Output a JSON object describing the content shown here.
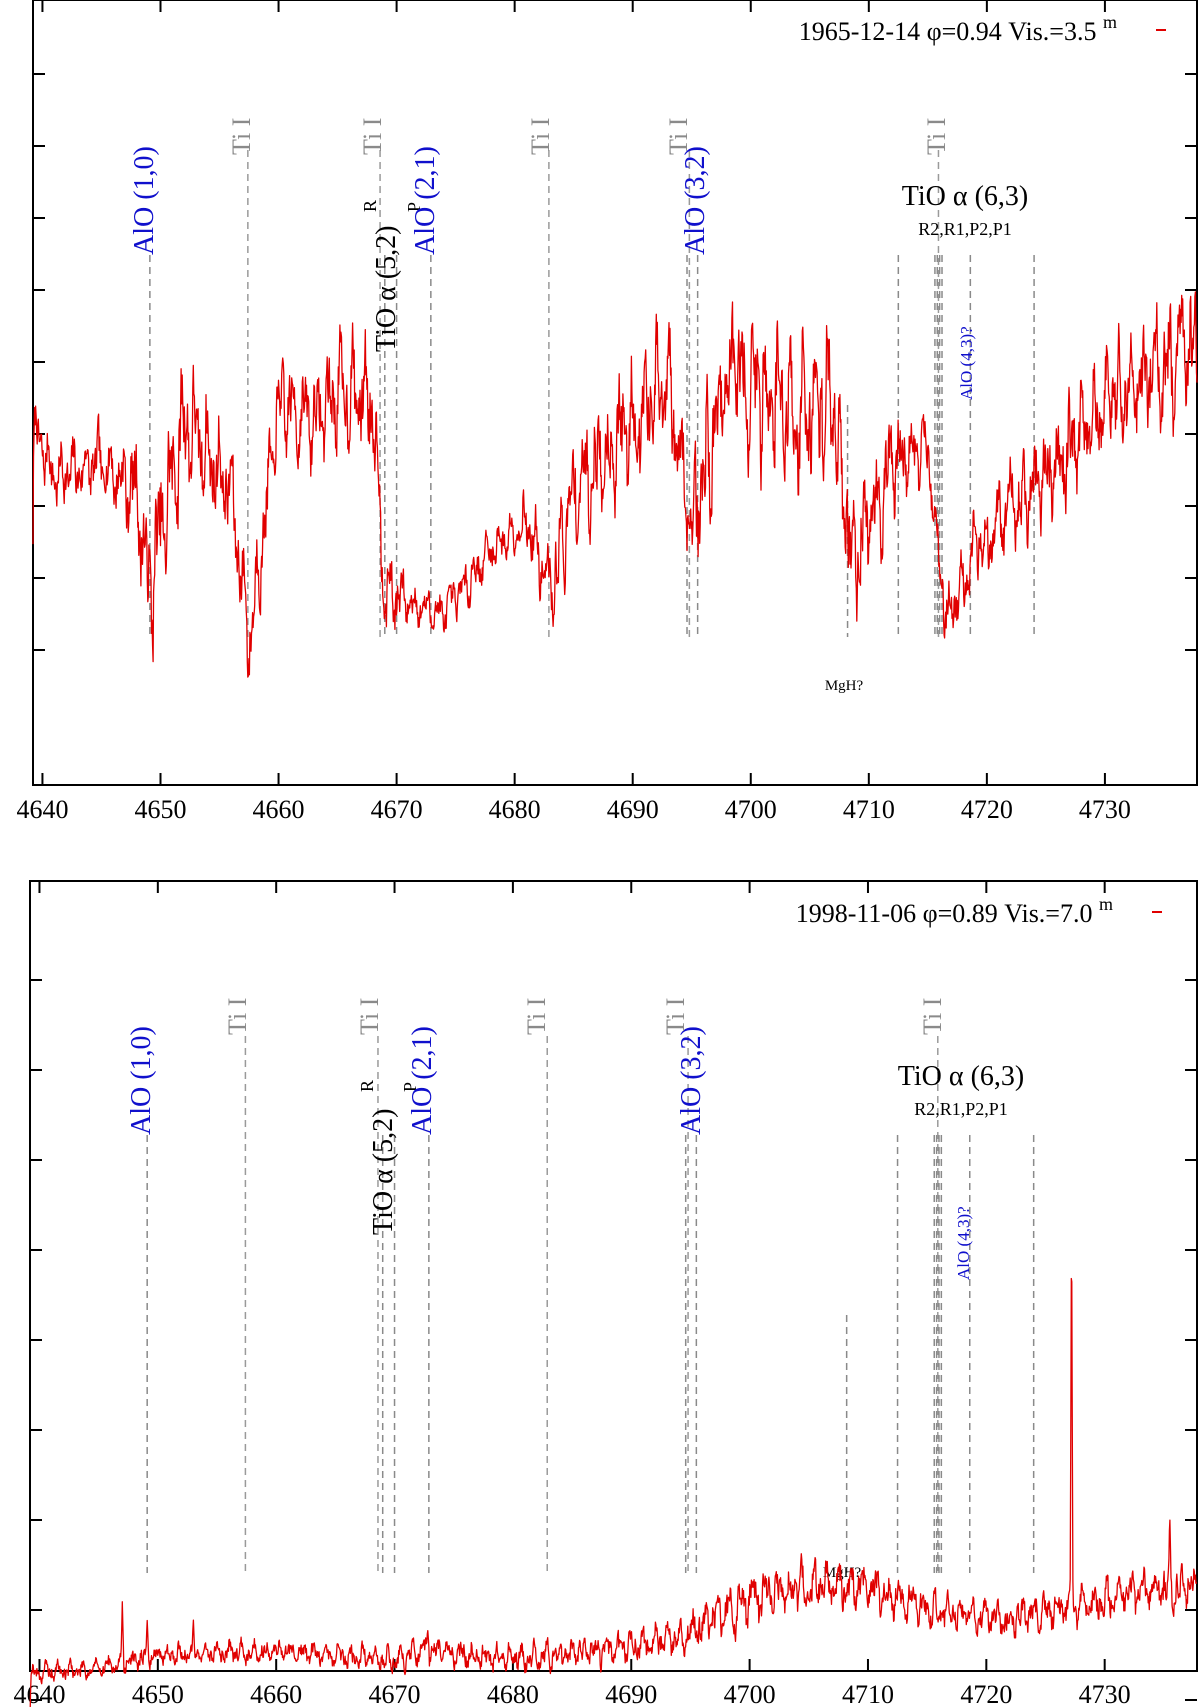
{
  "chart_data": [
    {
      "type": "line",
      "legend": {
        "label": "1965-12-14",
        "phase": "φ=0.94",
        "vis": "Vis.=3.5",
        "vis_sup": "m",
        "color": "#e00000",
        "placement": "top-right"
      },
      "xlim": [
        4639.2,
        4737.8
      ],
      "x_ticks": [
        4640,
        4650,
        4660,
        4670,
        4680,
        4690,
        4700,
        4710,
        4720,
        4730
      ],
      "ylim": [
        0,
        9
      ],
      "y_ticks": [
        1,
        2,
        3,
        4,
        5,
        6,
        7,
        8,
        9
      ],
      "y_tick_labels_shown": false,
      "spectrum": {
        "color": "#e00000",
        "anchors": [
          [
            4639.2,
            4.1
          ],
          [
            4641,
            3.4
          ],
          [
            4645,
            3.6
          ],
          [
            4648,
            3.2
          ],
          [
            4649,
            1.8
          ],
          [
            4652,
            4.2
          ],
          [
            4656,
            3.2
          ],
          [
            4657.5,
            1.1
          ],
          [
            4660,
            4.4
          ],
          [
            4663,
            4.2
          ],
          [
            4665,
            4.6
          ],
          [
            4668,
            4.5
          ],
          [
            4669,
            1.8
          ],
          [
            4672,
            1.6
          ],
          [
            4674,
            1.5
          ],
          [
            4678,
            2.4
          ],
          [
            4681,
            2.8
          ],
          [
            4683,
            1.8
          ],
          [
            4685,
            3.2
          ],
          [
            4688,
            3.8
          ],
          [
            4690,
            4.2
          ],
          [
            4693,
            4.6
          ],
          [
            4695,
            2.8
          ],
          [
            4698,
            4.8
          ],
          [
            4701,
            4.6
          ],
          [
            4704,
            4.3
          ],
          [
            4707,
            4.5
          ],
          [
            4708.5,
            2.2
          ],
          [
            4712,
            3.6
          ],
          [
            4715,
            3.8
          ],
          [
            4716.5,
            1.4
          ],
          [
            4719,
            2.4
          ],
          [
            4723,
            3.1
          ],
          [
            4727,
            3.8
          ],
          [
            4731,
            4.6
          ],
          [
            4735,
            4.9
          ],
          [
            4737.8,
            5.3
          ]
        ],
        "amplitude": [
          [
            4639.2,
            1.2
          ],
          [
            4646,
            1.5
          ],
          [
            4650,
            3.2
          ],
          [
            4656,
            2.0
          ],
          [
            4662,
            2.0
          ],
          [
            4668,
            2.5
          ],
          [
            4671,
            0.9
          ],
          [
            4680,
            1.0
          ],
          [
            4686,
            2.4
          ],
          [
            4694,
            2.8
          ],
          [
            4700,
            3.0
          ],
          [
            4706,
            3.4
          ],
          [
            4710,
            2.6
          ],
          [
            4716,
            1.2
          ],
          [
            4722,
            2.0
          ],
          [
            4730,
            2.3
          ],
          [
            4737.8,
            2.6
          ]
        ],
        "seed": 7
      },
      "annotations": {
        "mgh": {
          "x": 4708.2,
          "label": "MgH?"
        },
        "tio63": {
          "x": 4715.7,
          "label": "TiO α (6,3)",
          "sub": "R2,R1,P2,P1"
        },
        "tio52": {
          "label": "TiO α (5,2)",
          "R": "R",
          "P": "P"
        },
        "alo43": {
          "label": "AlO (4,3)?"
        }
      },
      "species_lines": [
        {
          "label": "AlO (1,0)",
          "kind": "AlO",
          "x": [
            4649.1
          ]
        },
        {
          "label": "Ti I",
          "kind": "TiI",
          "x": [
            4657.4
          ]
        },
        {
          "label": "Ti I",
          "kind": "TiI",
          "x": [
            4668.6
          ]
        },
        {
          "label": "TiO α (5,2) R P",
          "kind": "TiO",
          "x": [
            4669.0,
            4670.0
          ]
        },
        {
          "label": "AlO (2,1)",
          "kind": "AlO",
          "x": [
            4672.9
          ]
        },
        {
          "label": "Ti I",
          "kind": "TiI",
          "x": [
            4682.9
          ]
        },
        {
          "label": "AlO (3,2)",
          "kind": "AlO",
          "x": [
            4694.6,
            4695.5
          ]
        },
        {
          "label": "Ti I",
          "kind": "TiI",
          "x": [
            4694.8
          ]
        },
        {
          "label": "MgH?",
          "kind": "MgH",
          "x": [
            4708.2
          ]
        },
        {
          "label": "",
          "kind": "TiO",
          "x": [
            4712.5
          ]
        },
        {
          "label": "Ti I",
          "kind": "TiI",
          "x": [
            4715.9
          ]
        },
        {
          "label": "TiO α (6,3)",
          "kind": "TiO",
          "x": [
            4715.6,
            4715.8,
            4716.0,
            4716.2
          ]
        },
        {
          "label": "AlO (4,3)?",
          "kind": "AlO",
          "x": [
            4718.6
          ]
        },
        {
          "label": "",
          "kind": "TiO",
          "x": [
            4724.0
          ]
        }
      ]
    },
    {
      "type": "line",
      "legend": {
        "label": "1998-11-06",
        "phase": "φ=0.89",
        "vis": "Vis.=7.0",
        "vis_sup": "m",
        "color": "#e00000",
        "placement": "top-right"
      },
      "xlim": [
        4639.2,
        4737.8
      ],
      "x_ticks": [
        4640,
        4650,
        4660,
        4670,
        4680,
        4690,
        4700,
        4710,
        4720,
        4730
      ],
      "ylim": [
        0,
        9
      ],
      "y_ticks": [
        1,
        2,
        3,
        4,
        5,
        6,
        7,
        8,
        9
      ],
      "y_tick_labels_shown": false,
      "spectrum": {
        "color": "#e00000",
        "anchors": [
          [
            4639.2,
            1.3
          ],
          [
            4645,
            1.35
          ],
          [
            4650,
            1.5
          ],
          [
            4660,
            1.55
          ],
          [
            4670,
            1.45
          ],
          [
            4673,
            1.55
          ],
          [
            4680,
            1.45
          ],
          [
            4688,
            1.55
          ],
          [
            4694,
            1.7
          ],
          [
            4700,
            2.1
          ],
          [
            4707,
            2.3
          ],
          [
            4710,
            2.25
          ],
          [
            4716,
            2.0
          ],
          [
            4722,
            1.9
          ],
          [
            4730,
            2.1
          ],
          [
            4737.8,
            2.3
          ]
        ],
        "amplitude": [
          [
            4639.2,
            0.35
          ],
          [
            4660,
            0.4
          ],
          [
            4690,
            0.55
          ],
          [
            4700,
            0.9
          ],
          [
            4710,
            0.75
          ],
          [
            4720,
            0.6
          ],
          [
            4737.8,
            0.8
          ]
        ],
        "spikes": [
          [
            4647,
            2.1
          ],
          [
            4649.1,
            1.9
          ],
          [
            4653,
            1.9
          ],
          [
            4672.8,
            1.8
          ],
          [
            4727.2,
            6.5
          ],
          [
            4735.5,
            3.1
          ],
          [
            4731.2,
            2.4
          ]
        ],
        "seed": 19
      },
      "annotations": {
        "mgh": {
          "x": 4708.2,
          "label": "MgH?"
        },
        "tio63": {
          "x": 4715.7,
          "label": "TiO α (6,3)",
          "sub": "R2,R1,P2,P1"
        },
        "tio52": {
          "label": "TiO α (5,2)",
          "R": "R",
          "P": "P"
        },
        "alo43": {
          "label": "AlO (4,3)?"
        }
      },
      "species_lines": [
        {
          "label": "AlO (1,0)",
          "kind": "AlO",
          "x": [
            4649.1
          ]
        },
        {
          "label": "Ti I",
          "kind": "TiI",
          "x": [
            4657.4
          ]
        },
        {
          "label": "Ti I",
          "kind": "TiI",
          "x": [
            4668.6
          ]
        },
        {
          "label": "TiO α (5,2) R P",
          "kind": "TiO",
          "x": [
            4669.0,
            4670.0
          ]
        },
        {
          "label": "AlO (2,1)",
          "kind": "AlO",
          "x": [
            4672.9
          ]
        },
        {
          "label": "Ti I",
          "kind": "TiI",
          "x": [
            4682.9
          ]
        },
        {
          "label": "AlO (3,2)",
          "kind": "AlO",
          "x": [
            4694.6,
            4695.5
          ]
        },
        {
          "label": "Ti I",
          "kind": "TiI",
          "x": [
            4694.8
          ]
        },
        {
          "label": "MgH?",
          "kind": "MgH",
          "x": [
            4708.2
          ]
        },
        {
          "label": "",
          "kind": "TiO",
          "x": [
            4712.5
          ]
        },
        {
          "label": "Ti I",
          "kind": "TiI",
          "x": [
            4715.9
          ]
        },
        {
          "label": "TiO α (6,3)",
          "kind": "TiO",
          "x": [
            4715.6,
            4715.8,
            4716.0,
            4716.2
          ]
        },
        {
          "label": "AlO (4,3)?",
          "kind": "AlO",
          "x": [
            4718.6
          ]
        },
        {
          "label": "",
          "kind": "TiO",
          "x": [
            4724.0
          ]
        }
      ]
    }
  ]
}
